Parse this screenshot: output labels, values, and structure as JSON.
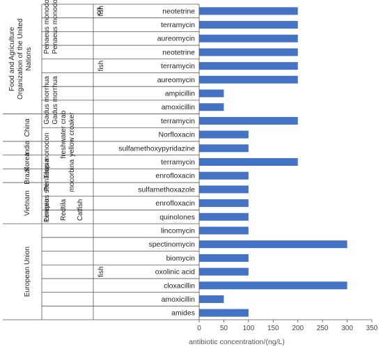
{
  "chart_data": {
    "type": "bar",
    "orientation": "horizontal",
    "xlabel": "antibiotic concentration/(ng/L)",
    "xlim": [
      0,
      350
    ],
    "xticks": [
      0,
      50,
      100,
      150,
      200,
      250,
      300,
      350
    ],
    "grid": false,
    "categories": [
      "neotetrine",
      "terramycin",
      "aureomycin",
      "neotetrine",
      "terramycin",
      "aureomycin",
      "ampicillin",
      "amoxicillin",
      "terramycin",
      "Norfloxacin",
      "sulfamethoxypyridazine",
      "terramycin",
      "enrofloxacin",
      "sulfamethoxazole",
      "enrofloxacin",
      "quinolones",
      "lincomycin",
      "spectinomycin",
      "biomycin",
      "oxolinic acid",
      "cloxacillin",
      "amoxicillin",
      "amides"
    ],
    "values": [
      200,
      200,
      200,
      200,
      200,
      200,
      50,
      50,
      200,
      100,
      100,
      200,
      100,
      100,
      100,
      100,
      100,
      300,
      100,
      100,
      300,
      50,
      100
    ],
    "color": "#4472C4",
    "regions": [
      {
        "label": "Food and Agriculture Organization of the United Nations",
        "start": 0,
        "end": 7
      },
      {
        "label": "China",
        "start": 8,
        "end": 9
      },
      {
        "label": "India",
        "start": 10,
        "end": 10
      },
      {
        "label": "Korea",
        "start": 11,
        "end": 11
      },
      {
        "label": "Brazil",
        "start": 12,
        "end": 12
      },
      {
        "label": "Vietnam",
        "start": 13,
        "end": 15
      },
      {
        "label": "European Union",
        "start": 16,
        "end": 22
      }
    ],
    "species": [
      {
        "label": "Penaeus monodon",
        "start": 0,
        "end": 2
      },
      {
        "label": "Penaeus monodon",
        "start": 0,
        "end": 2
      },
      {
        "label": "Gadus morrhua",
        "start": 6,
        "end": 7
      },
      {
        "label": "Gadus morrhua",
        "start": 6,
        "end": 7
      },
      {
        "label": "freshwater crab",
        "start": 8,
        "end": 10
      },
      {
        "label": "yellow croaker",
        "start": 8,
        "end": 10
      },
      {
        "label": "Penaeus monodon",
        "start": 10,
        "end": 12
      },
      {
        "label": "Tilapia",
        "start": 11,
        "end": 12
      },
      {
        "label": "Penaeus stri",
        "start": 13,
        "end": 15
      },
      {
        "label": "mocorbina",
        "start": 12,
        "end": 12
      },
      {
        "label": "Linepia",
        "start": 14,
        "end": 15
      },
      {
        "label": "Redtila",
        "start": 14,
        "end": 15
      },
      {
        "label": "Catfish",
        "start": 14,
        "end": 15
      }
    ],
    "item_labels": [
      {
        "label": "fish",
        "start": 0,
        "end": 0
      },
      {
        "label": "on",
        "start": 0,
        "end": 0
      },
      {
        "label": "fish",
        "start": 3,
        "end": 5
      },
      {
        "label": "fish",
        "start": 16,
        "end": 22
      }
    ]
  }
}
